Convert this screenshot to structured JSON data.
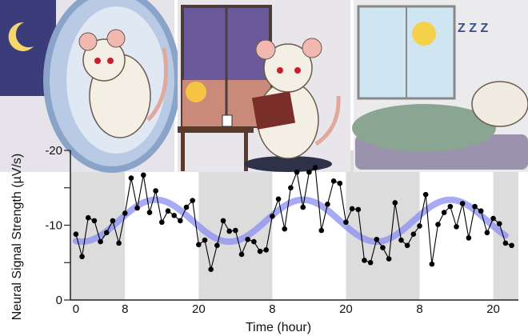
{
  "chart_data": {
    "type": "line",
    "title": "",
    "xlabel": "Time (hour)",
    "ylabel": "Neural Signal Strength (µV/s)",
    "xlim": [
      -0.9,
      72.1
    ],
    "ylim": [
      0,
      -20
    ],
    "y_axis_inverted": true,
    "grid": false,
    "x_ticks": [
      {
        "value": 0,
        "label": "0"
      },
      {
        "value": 8,
        "label": "8"
      },
      {
        "value": 20,
        "label": "20"
      },
      {
        "value": 32,
        "label": "8"
      },
      {
        "value": 44,
        "label": "20"
      },
      {
        "value": 56,
        "label": "8"
      },
      {
        "value": 68,
        "label": "20"
      }
    ],
    "y_ticks": [
      {
        "value": -20,
        "label": "-20"
      },
      {
        "value": -15,
        "label": ""
      },
      {
        "value": -10,
        "label": "-10"
      },
      {
        "value": -5,
        "label": ""
      },
      {
        "value": 0,
        "label": "0"
      }
    ],
    "night_shading": [
      [
        -0.9,
        8
      ],
      [
        20,
        32
      ],
      [
        44,
        56
      ],
      [
        68,
        72.1
      ]
    ],
    "series": [
      {
        "type": "line+markers",
        "color": "#000000",
        "x": [
          0,
          1,
          2,
          3,
          4,
          5,
          6,
          7,
          8,
          9,
          10,
          11,
          12,
          13,
          14,
          15,
          16,
          17,
          18,
          19,
          20,
          21,
          22,
          23,
          24,
          25,
          26,
          27,
          28,
          29,
          30,
          31,
          32,
          33,
          34,
          35,
          36,
          37,
          38,
          39,
          40,
          41,
          42,
          43,
          44,
          45,
          46,
          47,
          48,
          49,
          50,
          51,
          52,
          53,
          54,
          55,
          56,
          57,
          58,
          59,
          60,
          61,
          62,
          63,
          64,
          65,
          66,
          67,
          68,
          69,
          70,
          71
        ],
        "y": [
          -8.8,
          -5.8,
          -11.0,
          -10.6,
          -7.8,
          -9.0,
          -10.6,
          -7.6,
          -11.6,
          -16.3,
          -12.3,
          -16.7,
          -11.7,
          -14.6,
          -10.4,
          -11.9,
          -11.3,
          -10.6,
          -12.4,
          -13.3,
          -7.4,
          -8.0,
          -4.1,
          -7.3,
          -10.6,
          -9.2,
          -9.3,
          -6.1,
          -8.1,
          -7.8,
          -6.5,
          -6.7,
          -11.2,
          -13.5,
          -9.5,
          -15.0,
          -17.1,
          -12.4,
          -17.1,
          -17.7,
          -9.3,
          -12.8,
          -15.9,
          -15.6,
          -10.4,
          -12.2,
          -12.1,
          -5.3,
          -5.0,
          -8.1,
          -7.0,
          -5.5,
          -13.0,
          -8.0,
          -7.3,
          -8.8,
          -9.9,
          -14.1,
          -4.8,
          -10.1,
          -11.7,
          -12.5,
          -9.8,
          -12.9,
          -8.3,
          -12.5,
          -11.9,
          -9.0,
          -10.9,
          -10.2,
          -7.6,
          -7.3
        ]
      },
      {
        "type": "cosine-fit",
        "color": "#8a8ef0",
        "mesor": -10.6,
        "amplitude": 2.8,
        "peak_hour": 13,
        "period": 24,
        "x_range": [
          0,
          70
        ]
      }
    ]
  },
  "illustrations": {
    "colors": {
      "night": "#3b3d7a",
      "evening": "#6a5a9c",
      "day": "#cfe6f2",
      "wheel": "#9fb6d6",
      "blanket": "#8aa592"
    },
    "panels": [
      {
        "scene": "rat-running-in-wheel-at-night",
        "icons": [
          "moon-icon",
          "hamster-wheel-icon"
        ]
      },
      {
        "scene": "rat-reading-book-at-dusk",
        "icons": [
          "sun-icon",
          "book-icon",
          "mug-icon"
        ]
      },
      {
        "scene": "rat-sleeping-in-daytime",
        "icons": [
          "sun-icon",
          "zzz-icon"
        ]
      }
    ],
    "zzz_text": "Z Z Z"
  }
}
